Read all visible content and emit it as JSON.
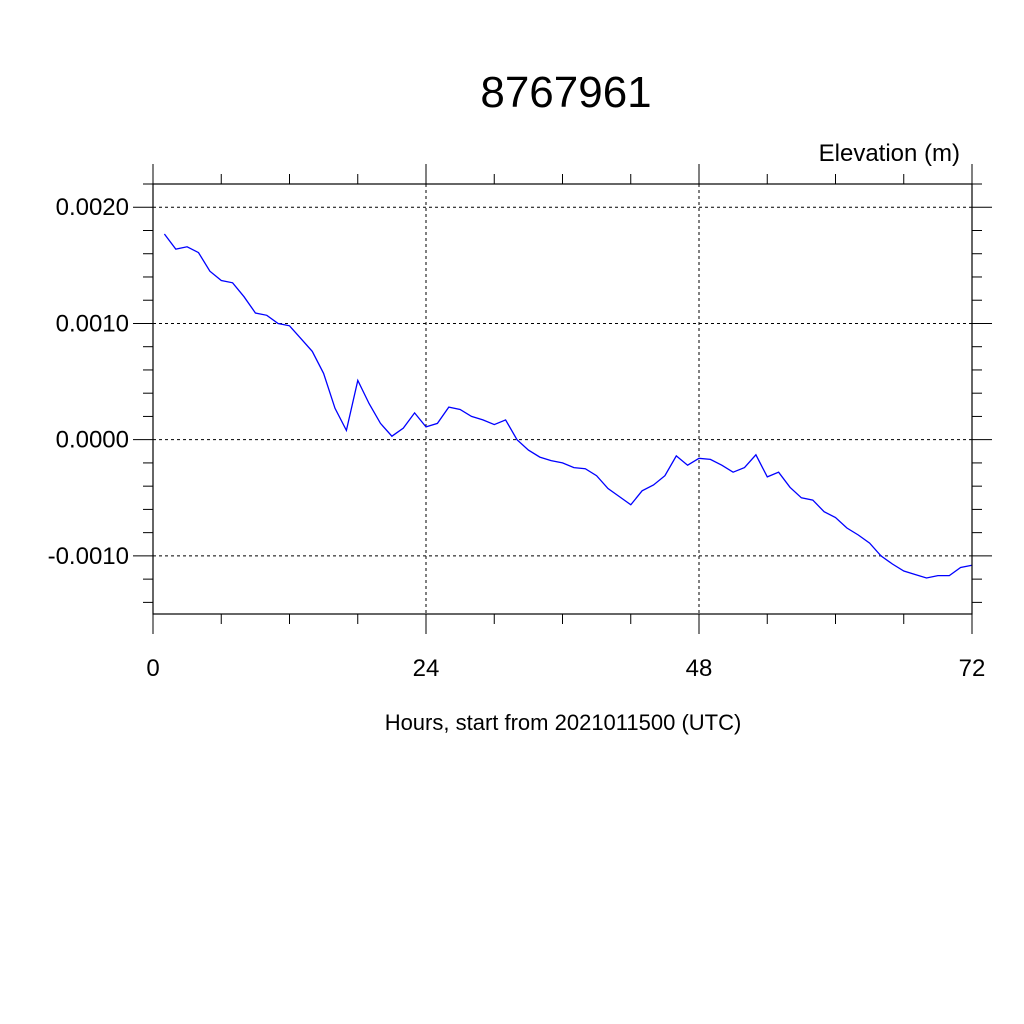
{
  "chart_data": {
    "type": "line",
    "title": "8767961",
    "ylabel": "Elevation (m)",
    "xlabel": "Hours, start from 2021011500 (UTC)",
    "xlim": [
      0,
      72
    ],
    "ylim": [
      -0.0015,
      0.0022
    ],
    "x_ticks": [
      0,
      24,
      48,
      72
    ],
    "x_tick_labels": [
      "0",
      "24",
      "48",
      "72"
    ],
    "y_ticks": [
      0.002,
      0.001,
      0.0,
      -0.001
    ],
    "y_tick_labels": [
      "0.0020",
      "0.0010",
      "0.0000",
      "-0.0010"
    ],
    "grid": true,
    "series": [
      {
        "color": "#0000ff",
        "x": [
          1,
          2,
          3,
          4,
          5,
          6,
          7,
          8,
          9,
          10,
          11,
          12,
          13,
          14,
          15,
          16,
          17,
          18,
          19,
          20,
          21,
          22,
          23,
          24,
          25,
          26,
          27,
          28,
          29,
          30,
          31,
          32,
          33,
          34,
          35,
          36,
          37,
          38,
          39,
          40,
          41,
          42,
          43,
          44,
          45,
          46,
          47,
          48,
          49,
          50,
          51,
          52,
          53,
          54,
          55,
          56,
          57,
          58,
          59,
          60,
          61,
          62,
          63,
          64,
          65,
          66,
          67,
          68,
          69,
          70,
          71,
          72
        ],
        "values": [
          0.00177,
          0.00164,
          0.00166,
          0.00161,
          0.00145,
          0.00137,
          0.00135,
          0.00123,
          0.00109,
          0.00107,
          0.001,
          0.00098,
          0.00087,
          0.00076,
          0.00057,
          0.00027,
          8e-05,
          0.00051,
          0.00031,
          0.00014,
          3e-05,
          0.0001,
          0.00023,
          0.00011,
          0.00014,
          0.00028,
          0.00026,
          0.0002,
          0.00017,
          0.00013,
          0.00017,
          0.0,
          -9e-05,
          -0.00015,
          -0.00018,
          -0.0002,
          -0.00024,
          -0.00025,
          -0.00031,
          -0.00042,
          -0.00049,
          -0.00056,
          -0.00044,
          -0.00039,
          -0.00031,
          -0.00014,
          -0.00022,
          -0.00016,
          -0.00017,
          -0.00022,
          -0.00028,
          -0.00024,
          -0.00013,
          -0.00032,
          -0.00028,
          -0.00041,
          -0.0005,
          -0.00052,
          -0.00062,
          -0.00067,
          -0.00076,
          -0.00082,
          -0.00089,
          -0.001,
          -0.00107,
          -0.00113,
          -0.00116,
          -0.00119,
          -0.00117,
          -0.00117,
          -0.0011,
          -0.00108
        ]
      }
    ]
  }
}
